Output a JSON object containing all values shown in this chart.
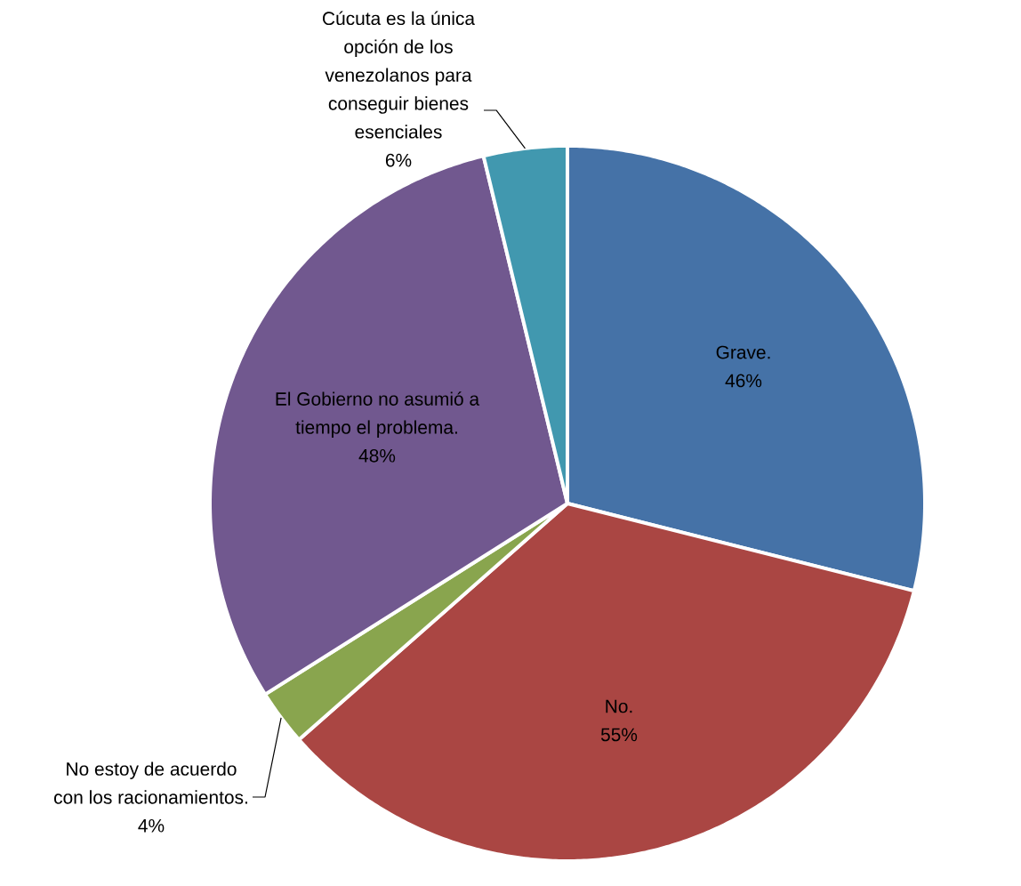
{
  "chart_data": {
    "type": "pie",
    "categories": [
      "Grave.",
      "No.",
      "No estoy de acuerdo con los racionamientos.",
      "El Gobierno no asumió a tiempo el problema.",
      "Cúcuta es la única opción de los venezolanos para conseguir bienes esenciales"
    ],
    "values": [
      46,
      55,
      4,
      48,
      6
    ],
    "value_labels": [
      "46%",
      "55%",
      "4%",
      "48%",
      "6%"
    ],
    "colors": [
      "#4572a7",
      "#aa4643",
      "#89a54e",
      "#71588f",
      "#4198af"
    ]
  }
}
